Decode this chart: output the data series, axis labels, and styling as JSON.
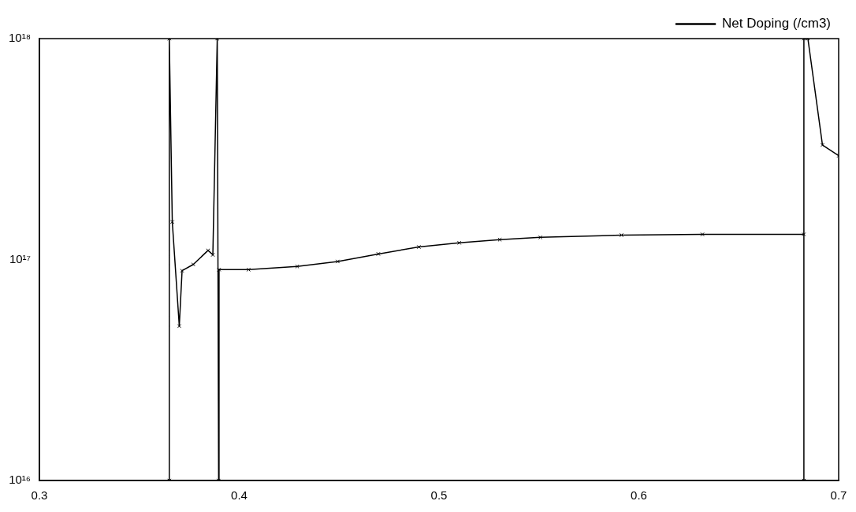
{
  "chart_data": {
    "type": "line",
    "log": "y",
    "marker": "cross",
    "legend": "top right",
    "xlim": [
      0.3,
      0.7
    ],
    "xticks": [
      0.3,
      0.4,
      0.5,
      0.6,
      0.7
    ],
    "ylim": [
      1e+16,
      1e+18
    ],
    "yticks": [
      {
        "value": 1e+16,
        "label": "10¹⁶"
      },
      {
        "value": 1e+17,
        "label": "10¹⁷"
      },
      {
        "value": 1e+18,
        "label": "10¹⁸"
      }
    ],
    "series": [
      {
        "name": "Net Doping (/cm3)",
        "color": "#000000",
        "x": [
          0.365,
          0.365,
          0.3665,
          0.37,
          0.3714,
          0.377,
          0.3844,
          0.3868,
          0.389,
          0.3897,
          0.3899,
          0.4047,
          0.429,
          0.4493,
          0.4696,
          0.4899,
          0.5101,
          0.5304,
          0.5507,
          0.5913,
          0.6318,
          0.6826,
          0.6826,
          0.6826,
          0.6846,
          0.6919,
          0.7
        ],
        "values": [
          1e+16,
          1e+18,
          1.48e+17,
          5e+16,
          8.9e+16,
          9.5e+16,
          1.1e+17,
          1.05e+17,
          1e+18,
          1e+16,
          9e+16,
          9e+16,
          9.3e+16,
          9.8e+16,
          1.06e+17,
          1.14e+17,
          1.19e+17,
          1.23e+17,
          1.26e+17,
          1.29e+17,
          1.3e+17,
          1.3e+17,
          1e+16,
          1e+18,
          1e+18,
          3.3e+17,
          2.95e+17
        ]
      }
    ]
  }
}
